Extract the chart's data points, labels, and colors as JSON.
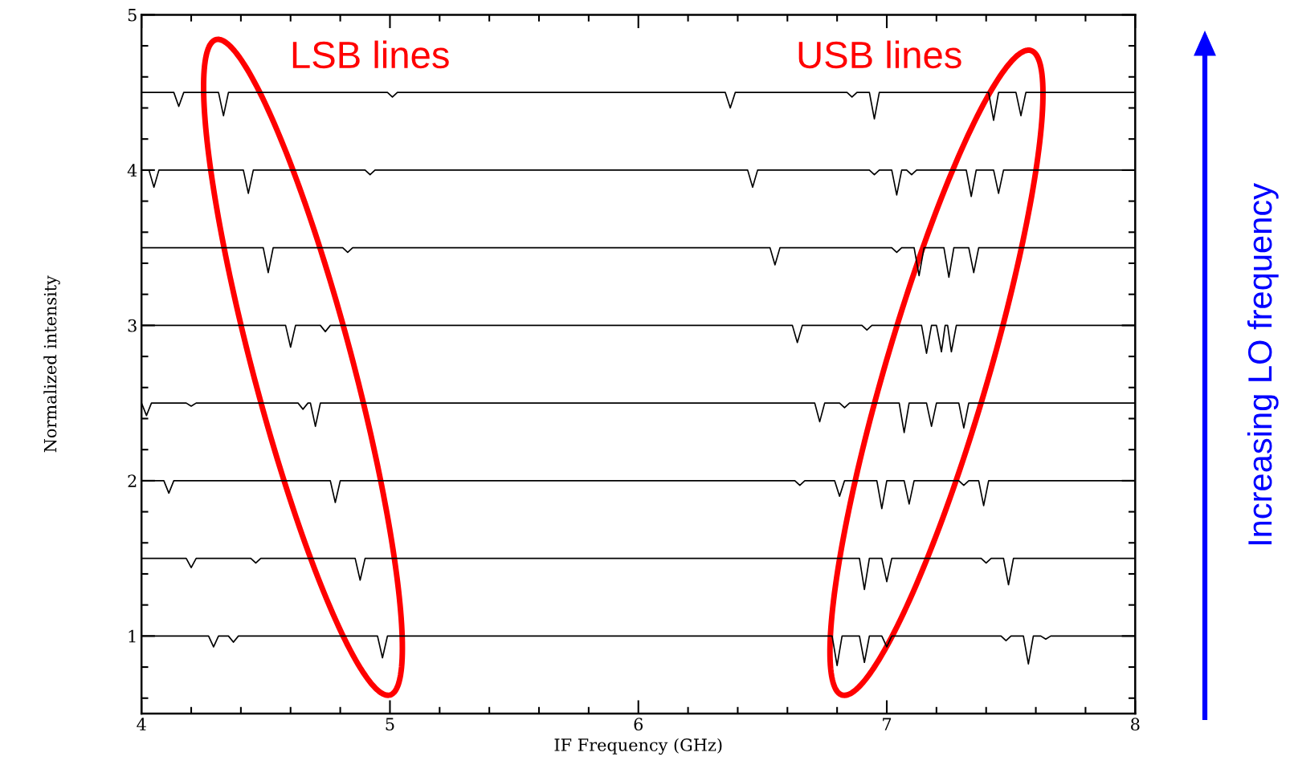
{
  "chart_data": {
    "type": "line",
    "xlabel": "IF Frequency (GHz)",
    "ylabel": "Normalized intensity",
    "xlim": [
      4,
      8
    ],
    "ylim": [
      0.5,
      5
    ],
    "xticks": [
      4,
      {
        "value": 4.2,
        "label": null
      },
      {
        "value": 4.4,
        "label": null
      },
      {
        "value": 4.6,
        "label": null
      },
      {
        "value": 4.8,
        "label": null
      },
      5,
      {
        "value": 5.2,
        "label": null
      },
      {
        "value": 5.4,
        "label": null
      },
      {
        "value": 5.6,
        "label": null
      },
      {
        "value": 5.8,
        "label": null
      },
      6,
      {
        "value": 6.2,
        "label": null
      },
      {
        "value": 6.4,
        "label": null
      },
      {
        "value": 6.6,
        "label": null
      },
      {
        "value": 6.8,
        "label": null
      },
      7,
      {
        "value": 7.2,
        "label": null
      },
      {
        "value": 7.4,
        "label": null
      },
      {
        "value": 7.6,
        "label": null
      },
      {
        "value": 7.8,
        "label": null
      },
      8
    ],
    "yticks": [
      {
        "value": 0.6,
        "label": null
      },
      {
        "value": 0.8,
        "label": null
      },
      1,
      {
        "value": 1.2,
        "label": null
      },
      {
        "value": 1.4,
        "label": null
      },
      {
        "value": 1.6,
        "label": null
      },
      {
        "value": 1.8,
        "label": null
      },
      2,
      {
        "value": 2.2,
        "label": null
      },
      {
        "value": 2.4,
        "label": null
      },
      {
        "value": 2.6,
        "label": null
      },
      {
        "value": 2.8,
        "label": null
      },
      3,
      {
        "value": 3.2,
        "label": null
      },
      {
        "value": 3.4,
        "label": null
      },
      {
        "value": 3.6,
        "label": null
      },
      {
        "value": 3.8,
        "label": null
      },
      4,
      {
        "value": 4.2,
        "label": null
      },
      {
        "value": 4.4,
        "label": null
      },
      {
        "value": 4.6,
        "label": null
      },
      {
        "value": 4.8,
        "label": null
      },
      5
    ],
    "grid": false,
    "legend": false,
    "marker": "none",
    "line_style": "solid",
    "annotations": [
      "LSB lines",
      "USB lines",
      "Increasing LO frequency"
    ],
    "series": [
      {
        "color": "#000000",
        "x": [
          4,
          4.27,
          4.29,
          4.31,
          4.35,
          4.37,
          4.39,
          4.95,
          4.97,
          4.99,
          6.78,
          6.8,
          6.82,
          6.89,
          6.91,
          6.93,
          6.98,
          7.0,
          7.02,
          7.46,
          7.48,
          7.5,
          7.55,
          7.57,
          7.59,
          7.62,
          7.64,
          7.66,
          8
        ],
        "values": [
          1,
          1,
          0.93,
          1,
          1,
          0.96,
          1,
          1,
          0.86,
          1,
          1,
          0.81,
          1,
          1,
          0.83,
          1,
          1,
          0.93,
          1,
          1,
          0.97,
          1,
          1,
          0.82,
          1,
          1,
          0.98,
          1,
          1
        ]
      },
      {
        "color": "#000000",
        "x": [
          4,
          4.18,
          4.2,
          4.22,
          4.44,
          4.46,
          4.48,
          4.86,
          4.88,
          4.9,
          6.89,
          6.91,
          6.93,
          6.98,
          7.0,
          7.02,
          7.38,
          7.4,
          7.42,
          7.47,
          7.49,
          7.51,
          8
        ],
        "values": [
          1.5,
          1.5,
          1.44,
          1.5,
          1.5,
          1.47,
          1.5,
          1.5,
          1.36,
          1.5,
          1.5,
          1.3,
          1.5,
          1.5,
          1.35,
          1.5,
          1.5,
          1.47,
          1.5,
          1.5,
          1.33,
          1.5,
          1.5
        ]
      },
      {
        "color": "#000000",
        "x": [
          4,
          4.09,
          4.11,
          4.13,
          4.76,
          4.78,
          4.8,
          6.63,
          6.65,
          6.67,
          6.79,
          6.81,
          6.83,
          6.96,
          6.98,
          7.0,
          7.07,
          7.09,
          7.11,
          7.29,
          7.31,
          7.33,
          7.37,
          7.39,
          7.41,
          8
        ],
        "values": [
          2,
          2,
          1.92,
          2,
          2,
          1.86,
          2,
          2,
          1.97,
          2,
          2,
          1.9,
          2,
          2,
          1.82,
          2,
          2,
          1.85,
          2,
          2,
          1.97,
          2,
          2,
          1.84,
          2,
          2
        ]
      },
      {
        "color": "#000000",
        "x": [
          4,
          4.02,
          4.04,
          4.18,
          4.2,
          4.22,
          4.63,
          4.65,
          4.67,
          4.68,
          4.7,
          4.72,
          6.71,
          6.73,
          6.75,
          6.81,
          6.83,
          6.85,
          7.05,
          7.07,
          7.09,
          7.16,
          7.18,
          7.2,
          7.29,
          7.31,
          7.33,
          8
        ],
        "values": [
          2.5,
          2.42,
          2.5,
          2.5,
          2.48,
          2.5,
          2.5,
          2.46,
          2.5,
          2.5,
          2.35,
          2.5,
          2.5,
          2.38,
          2.5,
          2.5,
          2.47,
          2.5,
          2.5,
          2.31,
          2.5,
          2.5,
          2.35,
          2.5,
          2.5,
          2.34,
          2.5,
          2.5
        ]
      },
      {
        "color": "#000000",
        "x": [
          4,
          4.58,
          4.6,
          4.62,
          4.72,
          4.74,
          4.76,
          6.62,
          6.64,
          6.66,
          6.9,
          6.92,
          6.94,
          7.14,
          7.16,
          7.18,
          7.2,
          7.22,
          7.235,
          7.245,
          7.26,
          7.28,
          8
        ],
        "values": [
          3,
          3,
          2.86,
          3,
          3,
          2.96,
          3,
          3,
          2.89,
          3,
          3,
          2.97,
          3,
          3,
          2.82,
          3,
          3,
          2.83,
          3,
          3,
          2.83,
          3,
          3
        ]
      },
      {
        "color": "#000000",
        "x": [
          4,
          4.49,
          4.51,
          4.53,
          4.81,
          4.83,
          4.85,
          6.53,
          6.55,
          6.57,
          7.02,
          7.04,
          7.06,
          7.11,
          7.13,
          7.15,
          7.23,
          7.25,
          7.27,
          7.33,
          7.35,
          7.37,
          8
        ],
        "values": [
          3.5,
          3.5,
          3.34,
          3.5,
          3.5,
          3.47,
          3.5,
          3.5,
          3.39,
          3.5,
          3.5,
          3.47,
          3.5,
          3.5,
          3.32,
          3.5,
          3.5,
          3.31,
          3.5,
          3.5,
          3.34,
          3.5,
          3.5
        ]
      },
      {
        "color": "#000000",
        "x": [
          4,
          4.03,
          4.05,
          4.07,
          4.41,
          4.43,
          4.45,
          4.9,
          4.92,
          4.94,
          6.44,
          6.46,
          6.48,
          6.93,
          6.95,
          6.97,
          7.02,
          7.04,
          7.06,
          7.08,
          7.1,
          7.12,
          7.32,
          7.34,
          7.36,
          7.43,
          7.45,
          7.47,
          8
        ],
        "values": [
          4,
          4,
          3.89,
          4,
          4,
          3.85,
          4,
          4,
          3.97,
          4,
          4,
          3.89,
          4,
          4,
          3.97,
          4,
          4,
          3.84,
          4,
          4,
          3.97,
          4,
          4,
          3.83,
          4,
          4,
          3.85,
          4,
          4
        ]
      },
      {
        "color": "#000000",
        "x": [
          4,
          4.13,
          4.15,
          4.17,
          4.31,
          4.33,
          4.35,
          4.99,
          5.01,
          5.03,
          6.35,
          6.37,
          6.39,
          6.84,
          6.86,
          6.88,
          6.93,
          6.95,
          6.97,
          7.41,
          7.43,
          7.45,
          7.52,
          7.54,
          7.56,
          8
        ],
        "values": [
          4.5,
          4.5,
          4.41,
          4.5,
          4.5,
          4.35,
          4.5,
          4.5,
          4.47,
          4.5,
          4.5,
          4.4,
          4.5,
          4.5,
          4.47,
          4.5,
          4.5,
          4.33,
          4.5,
          4.5,
          4.32,
          4.5,
          4.5,
          4.35,
          4.5,
          4.5
        ]
      }
    ]
  }
}
